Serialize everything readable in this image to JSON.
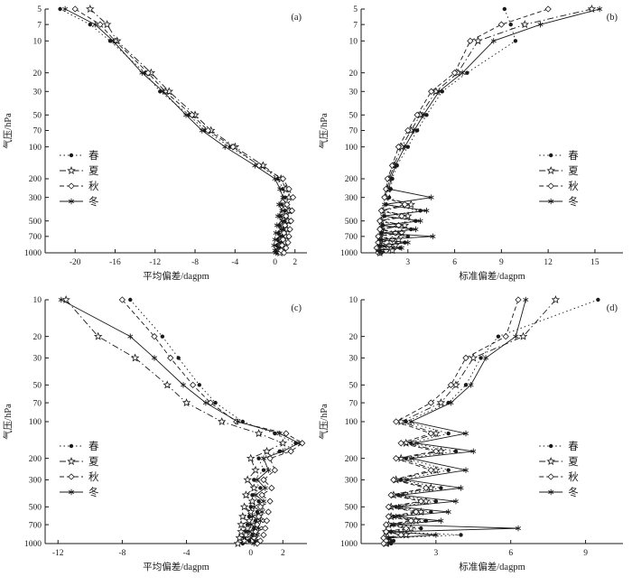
{
  "figure": {
    "background": "#ffffff",
    "color": "#1a1a1a",
    "series_styles": [
      {
        "key": "spring",
        "label": "春",
        "line": "dotted",
        "marker": "filled-circle"
      },
      {
        "key": "summer",
        "label": "夏",
        "line": "dashdot",
        "marker": "open-star"
      },
      {
        "key": "autumn",
        "label": "秋",
        "line": "dashed",
        "marker": "open-diamond"
      },
      {
        "key": "winter",
        "label": "冬",
        "line": "solid",
        "marker": "asterisk"
      }
    ]
  },
  "chart_data": [
    {
      "id": "a",
      "panel_label": "(a)",
      "type": "line",
      "xlabel": "平均偏差/dagpm",
      "ylabel": "气压/hPa",
      "xlim": [
        -23,
        3.2
      ],
      "x_ticks": [
        -20,
        -16,
        -12,
        -8,
        -4,
        0,
        2
      ],
      "ylim": [
        5,
        1000
      ],
      "y_scale": "log-inverted",
      "y_ticks": [
        5,
        7,
        10,
        20,
        30,
        50,
        70,
        100,
        200,
        300,
        500,
        700,
        1000
      ],
      "legend_position": "left",
      "pressure_levels": [
        5,
        7,
        10,
        20,
        30,
        50,
        70,
        100,
        150,
        200,
        250,
        300,
        350,
        400,
        450,
        500,
        550,
        600,
        650,
        700,
        750,
        800,
        850,
        900,
        950,
        1000
      ],
      "series": [
        {
          "name": "春",
          "values": [
            -21.5,
            -18.5,
            -16.5,
            -13.0,
            -11.5,
            -8.6,
            -7.0,
            -4.5,
            -1.5,
            0.3,
            0.8,
            1.0,
            0.7,
            1.0,
            0.6,
            1.0,
            0.5,
            0.9,
            0.4,
            0.8,
            0.3,
            0.7,
            0.2,
            0.5,
            0.1,
            0.2
          ]
        },
        {
          "name": "夏",
          "values": [
            -18.5,
            -16.8,
            -15.8,
            -12.4,
            -10.6,
            -8.0,
            -6.4,
            -4.0,
            -1.2,
            0.6,
            1.1,
            1.4,
            1.0,
            1.4,
            0.9,
            1.3,
            0.8,
            1.2,
            0.7,
            1.1,
            0.6,
            1.0,
            0.5,
            0.8,
            0.4,
            0.5
          ]
        },
        {
          "name": "秋",
          "values": [
            -20.0,
            -17.5,
            -16.0,
            -12.7,
            -11.0,
            -8.3,
            -6.7,
            -4.2,
            -1.6,
            0.8,
            1.4,
            1.8,
            1.2,
            1.7,
            1.1,
            1.6,
            1.0,
            1.5,
            0.9,
            1.4,
            0.8,
            1.3,
            0.7,
            1.1,
            0.6,
            0.9
          ]
        },
        {
          "name": "冬",
          "values": [
            -21.0,
            -18.0,
            -16.2,
            -13.3,
            -11.2,
            -8.9,
            -7.3,
            -5.0,
            -2.0,
            0.0,
            0.5,
            0.8,
            0.4,
            0.7,
            0.3,
            0.7,
            0.2,
            0.6,
            0.1,
            0.5,
            0.0,
            0.4,
            -0.1,
            0.3,
            0.0,
            0.1
          ]
        }
      ]
    },
    {
      "id": "b",
      "panel_label": "(b)",
      "type": "line",
      "xlabel": "标准偏差/dagpm",
      "ylabel": "气压/hPa",
      "xlim": [
        0,
        16.8
      ],
      "x_ticks": [
        3,
        6,
        9,
        12,
        15
      ],
      "ylim": [
        5,
        1000
      ],
      "y_scale": "log-inverted",
      "y_ticks": [
        5,
        7,
        10,
        20,
        30,
        50,
        70,
        100,
        200,
        300,
        500,
        700,
        1000
      ],
      "legend_position": "right",
      "pressure_levels": [
        5,
        7,
        10,
        20,
        30,
        50,
        70,
        100,
        150,
        200,
        250,
        300,
        350,
        400,
        450,
        500,
        550,
        600,
        650,
        700,
        750,
        800,
        850,
        900,
        950,
        1000
      ],
      "series": [
        {
          "name": "春",
          "values": [
            9.2,
            9.6,
            9.9,
            6.8,
            5.2,
            4.2,
            3.6,
            3.0,
            2.3,
            2.0,
            1.9,
            1.8,
            1.6,
            3.8,
            1.5,
            3.5,
            1.4,
            3.2,
            1.3,
            3.0,
            1.3,
            2.8,
            1.2,
            2.5,
            1.2,
            1.3
          ]
        },
        {
          "name": "夏",
          "values": [
            14.8,
            10.5,
            7.5,
            6.2,
            4.8,
            3.8,
            3.2,
            2.6,
            2.1,
            1.8,
            1.7,
            1.6,
            3.2,
            1.4,
            3.0,
            1.3,
            2.8,
            1.3,
            2.6,
            1.2,
            2.4,
            1.2,
            2.2,
            1.1,
            2.0,
            1.2
          ]
        },
        {
          "name": "秋",
          "values": [
            12.0,
            9.0,
            7.0,
            6.0,
            4.5,
            3.6,
            3.0,
            2.4,
            2.0,
            1.7,
            1.6,
            1.5,
            2.8,
            1.3,
            2.6,
            1.2,
            2.4,
            1.2,
            2.2,
            1.1,
            2.0,
            1.1,
            1.8,
            1.0,
            1.6,
            1.1
          ]
        },
        {
          "name": "冬",
          "values": [
            15.3,
            11.5,
            8.5,
            6.5,
            5.0,
            4.0,
            3.4,
            2.8,
            2.2,
            1.9,
            1.8,
            4.5,
            1.5,
            4.2,
            1.4,
            3.8,
            1.3,
            3.5,
            1.3,
            4.6,
            1.2,
            3.0,
            1.2,
            2.6,
            1.1,
            1.2
          ]
        }
      ]
    },
    {
      "id": "c",
      "panel_label": "(c)",
      "type": "line",
      "xlabel": "平均偏差/dagpm",
      "ylabel": "气压/hPa",
      "xlim": [
        -12.8,
        3.5
      ],
      "x_ticks": [
        -12,
        -8,
        -4,
        0,
        2
      ],
      "ylim": [
        10,
        1000
      ],
      "y_scale": "log-inverted",
      "y_ticks": [
        10,
        20,
        30,
        50,
        70,
        100,
        200,
        300,
        500,
        700,
        1000
      ],
      "legend_position": "left",
      "pressure_levels": [
        10,
        20,
        30,
        50,
        70,
        100,
        125,
        150,
        175,
        200,
        250,
        300,
        350,
        400,
        450,
        500,
        550,
        600,
        650,
        700,
        750,
        800,
        850,
        900,
        950,
        1000
      ],
      "series": [
        {
          "name": "春",
          "values": [
            -7.5,
            -5.5,
            -4.5,
            -3.2,
            -2.2,
            -0.5,
            1.5,
            2.8,
            1.8,
            0.5,
            0.8,
            0.2,
            0.6,
            0.1,
            0.5,
            0.0,
            0.4,
            -0.1,
            0.3,
            -0.2,
            0.2,
            -0.3,
            0.1,
            -0.4,
            -0.1,
            -0.5
          ]
        },
        {
          "name": "夏",
          "values": [
            -11.5,
            -9.5,
            -7.2,
            -5.2,
            -4.0,
            -1.8,
            0.5,
            2.0,
            1.0,
            0.0,
            0.3,
            -0.2,
            0.2,
            -0.3,
            0.1,
            -0.4,
            0.0,
            -0.5,
            -0.1,
            -0.6,
            -0.2,
            -0.6,
            -0.3,
            -0.7,
            -0.4,
            -0.8
          ]
        },
        {
          "name": "秋",
          "values": [
            -8.0,
            -6.0,
            -5.0,
            -3.6,
            -2.5,
            -0.9,
            2.2,
            3.2,
            2.5,
            1.2,
            1.5,
            0.8,
            1.3,
            0.7,
            1.2,
            0.6,
            1.1,
            0.5,
            1.0,
            0.4,
            0.9,
            0.3,
            0.8,
            0.2,
            0.6,
            0.4
          ]
        },
        {
          "name": "冬",
          "values": [
            -11.8,
            -7.5,
            -6.0,
            -4.2,
            -2.8,
            -0.8,
            1.8,
            3.0,
            2.0,
            0.8,
            1.1,
            0.4,
            0.9,
            0.3,
            0.8,
            0.2,
            0.7,
            0.1,
            0.6,
            0.0,
            0.5,
            -0.1,
            0.4,
            0.0,
            0.3,
            0.2
          ]
        }
      ]
    },
    {
      "id": "d",
      "panel_label": "(d)",
      "type": "line",
      "xlabel": "标准偏差/dagpm",
      "ylabel": "气压/hPa",
      "xlim": [
        0,
        10.5
      ],
      "x_ticks": [
        3,
        6,
        9
      ],
      "ylim": [
        10,
        1000
      ],
      "y_scale": "log-inverted",
      "y_ticks": [
        10,
        20,
        30,
        50,
        70,
        100,
        200,
        300,
        500,
        700,
        1000
      ],
      "legend_position": "right",
      "pressure_levels": [
        10,
        20,
        30,
        50,
        70,
        100,
        125,
        150,
        175,
        200,
        250,
        300,
        350,
        400,
        450,
        500,
        550,
        600,
        650,
        700,
        750,
        800,
        850,
        900,
        950,
        1000
      ],
      "series": [
        {
          "name": "春",
          "values": [
            9.5,
            5.5,
            4.8,
            4.2,
            3.5,
            1.8,
            3.5,
            2.0,
            3.8,
            1.8,
            3.5,
            1.6,
            3.2,
            1.5,
            3.0,
            1.4,
            2.8,
            1.3,
            2.6,
            1.2,
            2.4,
            1.2,
            4.0,
            1.1,
            1.3,
            1.2
          ]
        },
        {
          "name": "夏",
          "values": [
            7.8,
            6.5,
            4.5,
            3.8,
            3.2,
            1.6,
            3.0,
            1.8,
            3.2,
            1.6,
            3.0,
            1.4,
            2.8,
            1.3,
            2.6,
            1.2,
            2.4,
            1.2,
            2.2,
            1.1,
            2.0,
            1.0,
            1.8,
            1.0,
            1.1,
            1.0
          ]
        },
        {
          "name": "秋",
          "values": [
            6.3,
            5.8,
            4.2,
            3.6,
            2.8,
            1.4,
            2.8,
            1.6,
            3.0,
            1.4,
            2.8,
            1.3,
            2.6,
            1.2,
            2.4,
            1.1,
            2.2,
            1.1,
            2.0,
            1.0,
            1.8,
            1.0,
            1.6,
            0.9,
            1.0,
            0.9
          ]
        },
        {
          "name": "冬",
          "values": [
            6.6,
            6.2,
            5.0,
            4.4,
            3.6,
            2.0,
            4.2,
            2.2,
            4.5,
            2.0,
            4.2,
            1.8,
            4.0,
            1.6,
            3.8,
            1.5,
            3.5,
            1.4,
            3.2,
            1.3,
            6.3,
            1.2,
            3.0,
            1.1,
            1.2,
            1.1
          ]
        }
      ]
    }
  ]
}
